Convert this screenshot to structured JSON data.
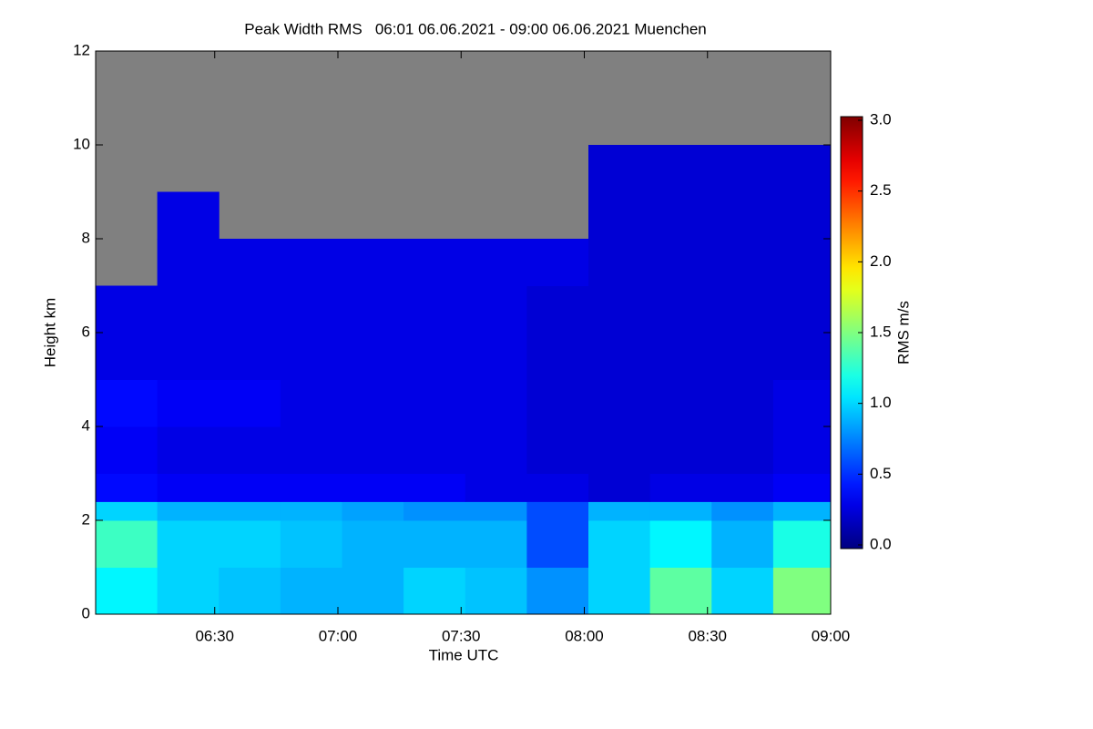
{
  "chart_data": {
    "type": "heatmap",
    "title": "Peak Width RMS   06:01 06.06.2021 - 09:00 06.06.2021 Muenchen",
    "x_label": "Time UTC",
    "y_label": "Height km",
    "xlim": [
      "06:01",
      "09:00"
    ],
    "xticks": [
      "06:30",
      "07:00",
      "07:30",
      "08:00",
      "08:30",
      "09:00"
    ],
    "ylim": [
      0,
      12
    ],
    "yticks": [
      0,
      2,
      4,
      6,
      8,
      10,
      12
    ],
    "x": [
      "06:01",
      "06:16",
      "06:31",
      "06:46",
      "07:01",
      "07:16",
      "07:31",
      "07:46",
      "08:01",
      "08:16",
      "08:31",
      "08:46"
    ],
    "y": [
      0,
      1,
      2,
      2.4,
      3,
      4,
      5,
      6,
      7,
      8,
      9,
      10,
      11
    ],
    "z": [
      [
        1.1,
        1.0,
        0.95,
        0.9,
        0.9,
        1.0,
        0.95,
        0.8,
        1.0,
        1.4,
        1.0,
        1.5
      ],
      [
        1.3,
        1.0,
        1.0,
        0.95,
        0.9,
        0.9,
        0.9,
        0.6,
        1.0,
        1.1,
        0.9,
        1.2
      ],
      [
        1.0,
        0.9,
        0.9,
        0.9,
        0.85,
        0.8,
        0.8,
        0.6,
        0.9,
        0.9,
        0.8,
        0.9
      ],
      [
        0.4,
        0.35,
        0.35,
        0.35,
        0.35,
        0.35,
        0.3,
        0.3,
        0.25,
        0.3,
        0.3,
        0.35
      ],
      [
        0.35,
        0.3,
        0.3,
        0.3,
        0.3,
        0.3,
        0.3,
        0.25,
        0.25,
        0.25,
        0.25,
        0.3
      ],
      [
        0.4,
        0.35,
        0.35,
        0.3,
        0.3,
        0.3,
        0.3,
        0.25,
        0.25,
        0.25,
        0.25,
        0.3
      ],
      [
        0.3,
        0.3,
        0.3,
        0.3,
        0.3,
        0.3,
        0.3,
        0.25,
        0.25,
        0.25,
        0.25,
        0.25
      ],
      [
        0.3,
        0.3,
        0.3,
        0.3,
        0.3,
        0.3,
        0.3,
        0.25,
        0.25,
        0.25,
        0.25,
        0.25
      ],
      [
        null,
        0.3,
        0.3,
        0.3,
        0.3,
        0.3,
        0.3,
        0.3,
        0.25,
        0.25,
        0.25,
        0.25
      ],
      [
        null,
        0.3,
        null,
        null,
        null,
        null,
        null,
        null,
        0.25,
        0.25,
        0.25,
        0.25
      ],
      [
        null,
        null,
        null,
        null,
        null,
        null,
        null,
        null,
        0.25,
        0.25,
        0.25,
        0.25
      ],
      [
        null,
        null,
        null,
        null,
        null,
        null,
        null,
        null,
        null,
        null,
        null,
        null
      ],
      [
        null,
        null,
        null,
        null,
        null,
        null,
        null,
        null,
        null,
        null,
        null,
        null
      ]
    ],
    "nodata_color": "#808080",
    "colorbar": {
      "label": "RMS m/s",
      "clim": [
        0,
        3
      ],
      "ticks": [
        {
          "value": 0,
          "label": "0.0"
        },
        {
          "value": 0.5,
          "label": "0.5"
        },
        {
          "value": 1,
          "label": "1.0"
        },
        {
          "value": 1.5,
          "label": "1.5"
        },
        {
          "value": 2,
          "label": "2.0"
        },
        {
          "value": 2.5,
          "label": "2.5"
        },
        {
          "value": 3,
          "label": "3.0"
        }
      ]
    }
  }
}
